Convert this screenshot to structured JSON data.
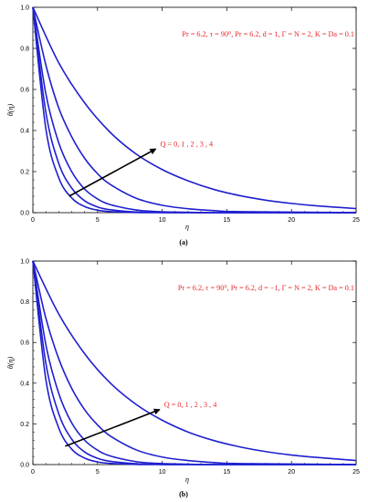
{
  "chart_data": [
    {
      "type": "line",
      "panel_label": "(a)",
      "xlabel": "η",
      "ylabel": "θ(η)",
      "xlim": [
        0,
        25
      ],
      "ylim": [
        0,
        1.0
      ],
      "x_ticks": [
        "0",
        "5",
        "10",
        "15",
        "20",
        "25"
      ],
      "y_ticks": [
        "0.0",
        "0.2",
        "0.4",
        "0.6",
        "0.8",
        "1.0"
      ],
      "params_text": "Pr = 6.2, τ = 90⁰, Pr = 6.2, d = 1, Γ = N = 2, K = Da = 0.1",
      "arrow_label": "Q = 0, 1 , 2 , 3 , 4",
      "arrow_from": [
        2.8,
        0.08
      ],
      "arrow_to": [
        9.5,
        0.31
      ],
      "line_color": "#1f1fcf",
      "series": [
        {
          "x": [
            0,
            1,
            2,
            3,
            4,
            5,
            6,
            8,
            10,
            12,
            25
          ],
          "y": [
            1.0,
            0.41,
            0.17,
            0.072,
            0.03,
            0.012,
            0.005,
            0.001,
            0.0,
            0.0,
            0.0
          ]
        },
        {
          "x": [
            0,
            1,
            2,
            3,
            4,
            5,
            6,
            8,
            10,
            12,
            25
          ],
          "y": [
            1.0,
            0.49,
            0.24,
            0.12,
            0.058,
            0.028,
            0.014,
            0.003,
            0.001,
            0.0,
            0.0
          ]
        },
        {
          "x": [
            0,
            1,
            2,
            3,
            4,
            5,
            6,
            8,
            10,
            12,
            14,
            25
          ],
          "y": [
            1.0,
            0.58,
            0.34,
            0.2,
            0.115,
            0.067,
            0.039,
            0.013,
            0.004,
            0.002,
            0.0,
            0.0
          ]
        },
        {
          "x": [
            0,
            1,
            2,
            3,
            4,
            5,
            6,
            8,
            10,
            12,
            14,
            16,
            25
          ],
          "y": [
            1.0,
            0.72,
            0.51,
            0.37,
            0.265,
            0.19,
            0.137,
            0.07,
            0.036,
            0.019,
            0.01,
            0.005,
            0.0
          ]
        },
        {
          "x": [
            0,
            2,
            4,
            6,
            8,
            10,
            12,
            14,
            16,
            18,
            20,
            22,
            25
          ],
          "y": [
            1.0,
            0.73,
            0.535,
            0.39,
            0.285,
            0.21,
            0.155,
            0.113,
            0.083,
            0.061,
            0.045,
            0.033,
            0.02
          ]
        }
      ]
    },
    {
      "type": "line",
      "panel_label": "(b)",
      "xlabel": "η",
      "ylabel": "θ(η)",
      "xlim": [
        0,
        25
      ],
      "ylim": [
        0,
        1.0
      ],
      "x_ticks": [
        "0",
        "5",
        "10",
        "15",
        "20",
        "25"
      ],
      "y_ticks": [
        "0.0",
        "0.2",
        "0.4",
        "0.6",
        "0.8",
        "1.0"
      ],
      "params_text": "Pr = 6.2, τ = 90⁰, Pr = 6.2, d = −1, Γ = N = 2, K = Da = 0.1",
      "arrow_label": "Q = 0, 1 , 2 , 3 , 4",
      "arrow_from": [
        2.5,
        0.09
      ],
      "arrow_to": [
        9.8,
        0.27
      ],
      "line_color": "#1f1fcf",
      "series": [
        {
          "x": [
            0,
            1,
            2,
            3,
            4,
            5,
            6,
            8,
            10,
            12,
            25
          ],
          "y": [
            1.0,
            0.42,
            0.18,
            0.076,
            0.032,
            0.013,
            0.006,
            0.001,
            0.0,
            0.0,
            0.0
          ]
        },
        {
          "x": [
            0,
            1,
            2,
            3,
            4,
            5,
            6,
            8,
            10,
            12,
            25
          ],
          "y": [
            1.0,
            0.5,
            0.25,
            0.125,
            0.062,
            0.031,
            0.016,
            0.004,
            0.001,
            0.0,
            0.0
          ]
        },
        {
          "x": [
            0,
            1,
            2,
            3,
            4,
            5,
            6,
            8,
            10,
            12,
            14,
            25
          ],
          "y": [
            1.0,
            0.59,
            0.35,
            0.205,
            0.12,
            0.071,
            0.042,
            0.014,
            0.005,
            0.002,
            0.0,
            0.0
          ]
        },
        {
          "x": [
            0,
            1,
            2,
            3,
            4,
            5,
            6,
            8,
            10,
            12,
            14,
            16,
            25
          ],
          "y": [
            1.0,
            0.72,
            0.52,
            0.375,
            0.27,
            0.195,
            0.14,
            0.072,
            0.037,
            0.02,
            0.01,
            0.005,
            0.0
          ]
        },
        {
          "x": [
            0,
            2,
            4,
            6,
            8,
            10,
            12,
            14,
            16,
            18,
            20,
            22,
            25
          ],
          "y": [
            1.0,
            0.74,
            0.545,
            0.4,
            0.295,
            0.218,
            0.16,
            0.118,
            0.087,
            0.064,
            0.047,
            0.035,
            0.02
          ]
        }
      ]
    }
  ]
}
